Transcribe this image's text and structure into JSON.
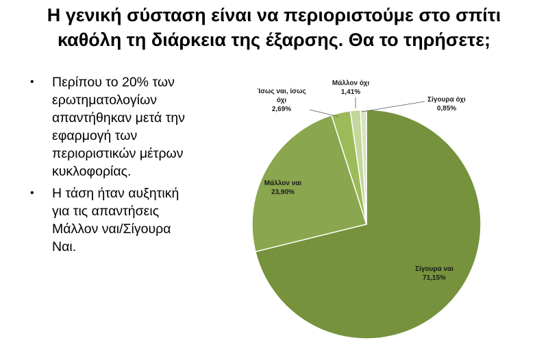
{
  "title": {
    "line1": "Η γενική σύσταση είναι να περιοριστούμε στο σπίτι",
    "line2": "καθόλη τη διάρκεια της έξαρσης. Θα το τηρήσετε;"
  },
  "bullets": [
    "Περίπου το 20% των ερωτηματολογίων απαντήθηκαν μετά την εφαρμογή των περιοριστικών μέτρων κυκλοφορίας.",
    "Η τάση ήταν αυξητική για τις απαντήσεις Μάλλον ναι/Σίγουρα Ναι."
  ],
  "bullet_icon": "bullet-dot",
  "chart_data": {
    "type": "pie",
    "slices": [
      {
        "label": "Σίγουρα ναι",
        "value": 71.15,
        "value_label": "71,15%",
        "color": "#76923c"
      },
      {
        "label": "Μάλλον ναι",
        "value": 23.9,
        "value_label": "23,90%",
        "color": "#8aa64e"
      },
      {
        "label_lines": [
          "Ίσως ναι, ίσως",
          "όχι"
        ],
        "value": 2.69,
        "value_label": "2,69%",
        "color": "#9bbb59"
      },
      {
        "label": "Μάλλον όχι",
        "value": 1.41,
        "value_label": "1,41%",
        "color": "#c3d69b"
      },
      {
        "label": "Σίγουρα όχι",
        "value": 0.85,
        "value_label": "0,85%",
        "color": "#d7e4bd"
      }
    ],
    "start": "top, clockwise",
    "data_labels": true,
    "legend": "none"
  }
}
